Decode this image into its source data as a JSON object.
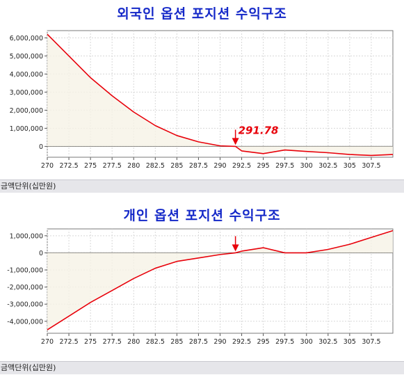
{
  "chart_data": [
    {
      "type": "line",
      "title": "외국인 옵션 포지션 수익구조",
      "unit_label": "금액단위(십만원)",
      "xlim": [
        270,
        310
      ],
      "ylim": [
        -600000,
        6400000
      ],
      "x_ticks": [
        "270",
        "272.5",
        "275",
        "277.5",
        "280",
        "282.5",
        "285",
        "287.5",
        "290",
        "292.5",
        "295",
        "297.5",
        "300",
        "302.5",
        "305",
        "307.5"
      ],
      "y_ticks": [
        {
          "value": 6000000,
          "label": "6,000,000"
        },
        {
          "value": 5000000,
          "label": "5,000,000"
        },
        {
          "value": 4000000,
          "label": "4,000,000"
        },
        {
          "value": 3000000,
          "label": "3,000,000"
        },
        {
          "value": 2000000,
          "label": "2,000,000"
        },
        {
          "value": 1000000,
          "label": "1,000,000"
        },
        {
          "value": 0,
          "label": "0"
        }
      ],
      "series": [
        {
          "color": "#e8000a",
          "x": [
            270,
            272.5,
            275,
            277.5,
            280,
            282.5,
            285,
            287.5,
            290,
            291.78,
            292.5,
            295,
            297.5,
            300,
            302.5,
            305,
            307.5,
            310
          ],
          "values": [
            6200000,
            5000000,
            3800000,
            2800000,
            1900000,
            1150000,
            600000,
            250000,
            30000,
            0,
            -250000,
            -400000,
            -200000,
            -280000,
            -350000,
            -450000,
            -500000,
            -450000
          ]
        }
      ],
      "annotation": {
        "x": 291.78,
        "label": "291.78",
        "color": "#e8000a"
      }
    },
    {
      "type": "line",
      "title": "개인 옵션 포지션 수익구조",
      "unit_label": "금액단위(십만원)",
      "xlim": [
        270,
        310
      ],
      "ylim": [
        -4700000,
        1400000
      ],
      "x_ticks": [
        "270",
        "272.5",
        "275",
        "277.5",
        "280",
        "282.5",
        "285",
        "287.5",
        "290",
        "292.5",
        "295",
        "297.5",
        "300",
        "302.5",
        "305",
        "307.5"
      ],
      "y_ticks": [
        {
          "value": 1000000,
          "label": "1,000,000"
        },
        {
          "value": 0,
          "label": "0"
        },
        {
          "value": -1000000,
          "label": "-1,000,000"
        },
        {
          "value": -2000000,
          "label": "-2,000,000"
        },
        {
          "value": -3000000,
          "label": "-3,000,000"
        },
        {
          "value": -4000000,
          "label": "-4,000,000"
        }
      ],
      "series": [
        {
          "color": "#e8000a",
          "x": [
            270,
            272.5,
            275,
            277.5,
            280,
            282.5,
            285,
            287.5,
            290,
            291.78,
            292.5,
            295,
            297.5,
            300,
            302.5,
            305,
            307.5,
            310
          ],
          "values": [
            -4500000,
            -3700000,
            -2900000,
            -2200000,
            -1500000,
            -900000,
            -500000,
            -300000,
            -100000,
            0,
            100000,
            300000,
            0,
            0,
            200000,
            500000,
            900000,
            1300000
          ]
        }
      ],
      "annotation": {
        "x": 291.78,
        "label": "",
        "color": "#e8000a"
      }
    }
  ]
}
